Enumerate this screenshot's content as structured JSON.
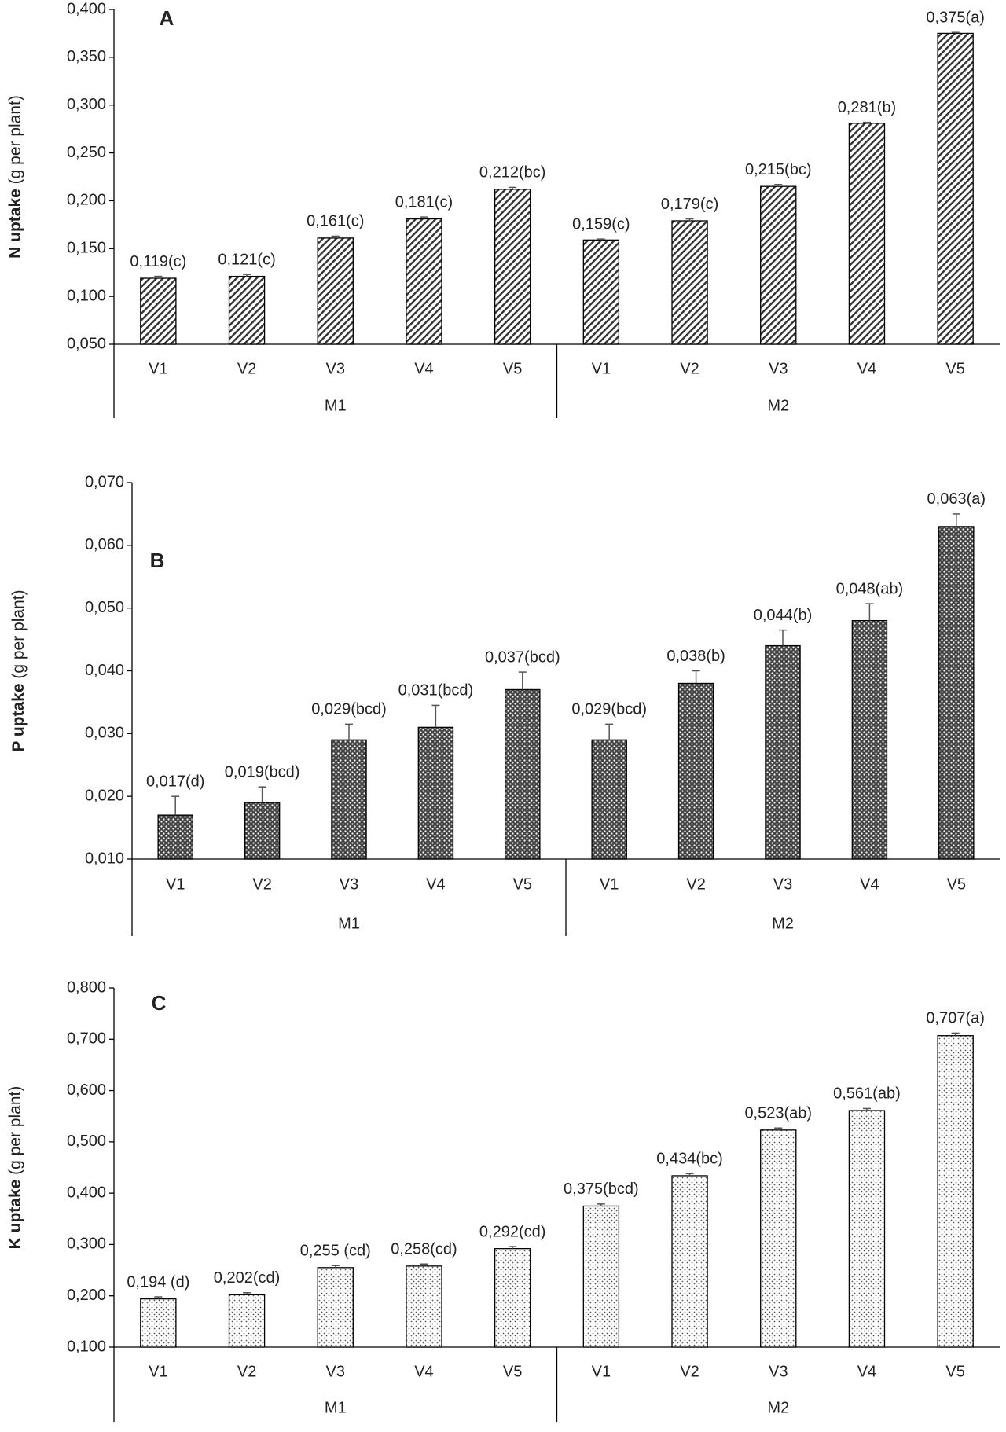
{
  "chart_data": [
    {
      "type": "bar",
      "title": "A",
      "ylabel": "N uptake",
      "ylabel_unit": "(g per plant)",
      "pattern": "hatch",
      "ylim": [
        0.05,
        0.4
      ],
      "yticks": [
        {
          "value": 0.05,
          "label": "0,050"
        },
        {
          "value": 0.1,
          "label": "0,100"
        },
        {
          "value": 0.15,
          "label": "0,150"
        },
        {
          "value": 0.2,
          "label": "0,200"
        },
        {
          "value": 0.25,
          "label": "0,250"
        },
        {
          "value": 0.3,
          "label": "0,300"
        },
        {
          "value": 0.35,
          "label": "0,350"
        },
        {
          "value": 0.4,
          "label": "0,400"
        }
      ],
      "groups": [
        {
          "name": "M1",
          "categories": [
            "V1",
            "V2",
            "V3",
            "V4",
            "V5"
          ],
          "values": [
            0.119,
            0.121,
            0.161,
            0.181,
            0.212
          ],
          "value_labels": [
            "0,119(c)",
            "0,121(c)",
            "0,161(c)",
            "0,181(c)",
            "0,212(bc)"
          ],
          "errors": [
            0.002,
            0.002,
            0.002,
            0.002,
            0.002
          ]
        },
        {
          "name": "M2",
          "categories": [
            "V1",
            "V2",
            "V3",
            "V4",
            "V5"
          ],
          "values": [
            0.159,
            0.179,
            0.215,
            0.281,
            0.375
          ],
          "value_labels": [
            "0,159(c)",
            "0,179(c)",
            "0,215(bc)",
            "0,281(b)",
            "0,375(a)"
          ],
          "errors": [
            0.001,
            0.002,
            0.002,
            0.001,
            0.001
          ]
        }
      ]
    },
    {
      "type": "bar",
      "title": "B",
      "ylabel": "P uptake",
      "ylabel_unit": "(g per plant)",
      "pattern": "dots-dark",
      "ylim": [
        0.01,
        0.07
      ],
      "yticks": [
        {
          "value": 0.01,
          "label": "0,010"
        },
        {
          "value": 0.02,
          "label": "0,020"
        },
        {
          "value": 0.03,
          "label": "0,030"
        },
        {
          "value": 0.04,
          "label": "0,040"
        },
        {
          "value": 0.05,
          "label": "0,050"
        },
        {
          "value": 0.06,
          "label": "0,060"
        },
        {
          "value": 0.07,
          "label": "0,070"
        }
      ],
      "groups": [
        {
          "name": "M1",
          "categories": [
            "V1",
            "V2",
            "V3",
            "V4",
            "V5"
          ],
          "values": [
            0.017,
            0.019,
            0.029,
            0.031,
            0.037
          ],
          "value_labels": [
            "0,017(d)",
            "0,019(bcd)",
            "0,029(bcd)",
            "0,031(bcd)",
            "0,037(bcd)"
          ],
          "errors": [
            0.003,
            0.0025,
            0.0025,
            0.0035,
            0.0028
          ]
        },
        {
          "name": "M2",
          "categories": [
            "V1",
            "V2",
            "V3",
            "V4",
            "V5"
          ],
          "values": [
            0.029,
            0.038,
            0.044,
            0.048,
            0.063
          ],
          "value_labels": [
            "0,029(bcd)",
            "0,038(b)",
            "0,044(b)",
            "0,048(ab)",
            "0,063(a)"
          ],
          "errors": [
            0.0025,
            0.002,
            0.0025,
            0.0027,
            0.002
          ]
        }
      ]
    },
    {
      "type": "bar",
      "title": "C",
      "ylabel": "K uptake",
      "ylabel_unit": "(g per plant)",
      "pattern": "dots-light",
      "ylim": [
        0.1,
        0.8
      ],
      "yticks": [
        {
          "value": 0.1,
          "label": "0,100"
        },
        {
          "value": 0.2,
          "label": "0,200"
        },
        {
          "value": 0.3,
          "label": "0,300"
        },
        {
          "value": 0.4,
          "label": "0,400"
        },
        {
          "value": 0.5,
          "label": "0,500"
        },
        {
          "value": 0.6,
          "label": "0,600"
        },
        {
          "value": 0.7,
          "label": "0,700"
        },
        {
          "value": 0.8,
          "label": "0,800"
        }
      ],
      "groups": [
        {
          "name": "M1",
          "categories": [
            "V1",
            "V2",
            "V3",
            "V4",
            "V5"
          ],
          "values": [
            0.194,
            0.202,
            0.255,
            0.258,
            0.292
          ],
          "value_labels": [
            "0,194 (d)",
            "0,202(cd)",
            "0,255 (cd)",
            "0,258(cd)",
            "0,292(cd)"
          ],
          "errors": [
            0.004,
            0.004,
            0.004,
            0.004,
            0.004
          ]
        },
        {
          "name": "M2",
          "categories": [
            "V1",
            "V2",
            "V3",
            "V4",
            "V5"
          ],
          "values": [
            0.375,
            0.434,
            0.523,
            0.561,
            0.707
          ],
          "value_labels": [
            "0,375(bcd)",
            "0,434(bc)",
            "0,523(ab)",
            "0,561(ab)",
            "0,707(a)"
          ],
          "errors": [
            0.004,
            0.004,
            0.004,
            0.004,
            0.005
          ]
        }
      ]
    }
  ]
}
